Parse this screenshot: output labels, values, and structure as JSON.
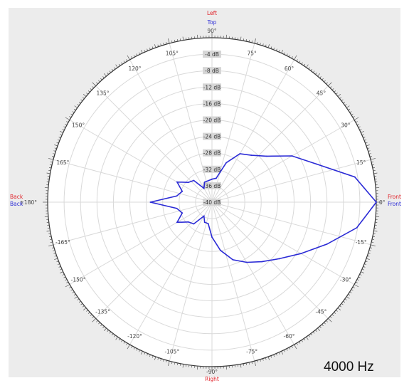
{
  "chart_data": {
    "type": "polar-line",
    "frequency_label": "4000 Hz",
    "ring_labels": [
      "-4 dB",
      "-8 dB",
      "-12 dB",
      "-16 dB",
      "-20 dB",
      "-24 dB",
      "-28 dB",
      "-32 dB",
      "-36 dB",
      "-40 dB"
    ],
    "r_range_db": [
      -40,
      0
    ],
    "angle_labels": [
      {
        "deg": 0,
        "text": "0°"
      },
      {
        "deg": 15,
        "text": "15°"
      },
      {
        "deg": 30,
        "text": "30°"
      },
      {
        "deg": 45,
        "text": "45°"
      },
      {
        "deg": 60,
        "text": "60°"
      },
      {
        "deg": 75,
        "text": "75°"
      },
      {
        "deg": 90,
        "text": "90°"
      },
      {
        "deg": 105,
        "text": "105°"
      },
      {
        "deg": 120,
        "text": "120°"
      },
      {
        "deg": 135,
        "text": "135°"
      },
      {
        "deg": 150,
        "text": "150°"
      },
      {
        "deg": 165,
        "text": "165°"
      },
      {
        "deg": 180,
        "text": "±180°"
      },
      {
        "deg": -165,
        "text": "-165°"
      },
      {
        "deg": -150,
        "text": "-150°"
      },
      {
        "deg": -135,
        "text": "-135°"
      },
      {
        "deg": -120,
        "text": "-120°"
      },
      {
        "deg": -105,
        "text": "-105°"
      },
      {
        "deg": -90,
        "text": "-90°"
      },
      {
        "deg": -75,
        "text": "-75°"
      },
      {
        "deg": -60,
        "text": "-60°"
      },
      {
        "deg": -45,
        "text": "-45°"
      },
      {
        "deg": -30,
        "text": "-30°"
      },
      {
        "deg": -15,
        "text": "-15°"
      }
    ],
    "orientation_labels": {
      "top_red": "Left",
      "top_blue": "Top",
      "bottom_red": "Right",
      "left_red": "Back",
      "left_blue": "Back",
      "right_red": "Front",
      "right_blue": "Front"
    },
    "colors": {
      "trace": "#2b2bd6",
      "red_label": "#e0242b",
      "blue_label": "#2b2bd6",
      "grid": "#d9d9d9",
      "outer": "#333333"
    },
    "series": [
      {
        "angles_deg": [
          0,
          10,
          20,
          30,
          40,
          50,
          60,
          70,
          80,
          90,
          100,
          110,
          120,
          130,
          140,
          150,
          160,
          170,
          180,
          190,
          200,
          210,
          220,
          230,
          240,
          250,
          260,
          270,
          280,
          290,
          300,
          310,
          320,
          330,
          340,
          350
        ],
        "values_db": [
          0,
          -4.7,
          -12.9,
          -17.5,
          -22.6,
          -25.1,
          -26.4,
          -29.8,
          -34.1,
          -34.4,
          -34.7,
          -34.8,
          -36.1,
          -33.1,
          -32.5,
          -30.2,
          -32.3,
          -31.3,
          -25.0,
          -31.3,
          -32.3,
          -30.2,
          -32.5,
          -33.1,
          -36.1,
          -34.8,
          -34.7,
          -31.5,
          -28.1,
          -25.1,
          -23.1,
          -21.1,
          -18.6,
          -15.0,
          -10.2,
          -4.2
        ]
      }
    ]
  }
}
